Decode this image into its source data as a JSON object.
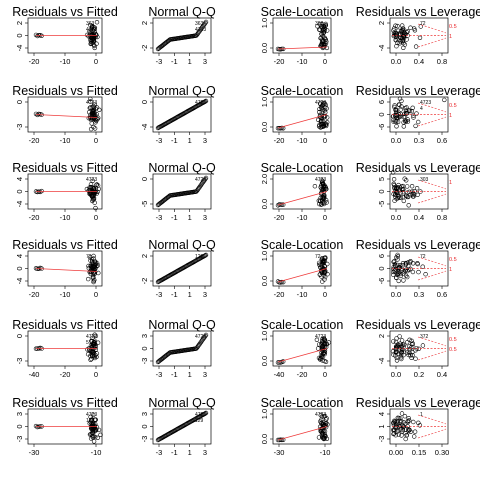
{
  "colors": {
    "smooth": "#ee3b3b",
    "cook": "#e8262a",
    "point": "#000000",
    "frame": "#000000"
  },
  "chart_data": [
    {
      "row": 0,
      "col": 0,
      "type": "scatter",
      "title": "Residuals vs Fitted",
      "xticks": [
        "-20",
        "-10",
        "0"
      ],
      "yticks": [
        "-4",
        "0",
        "2"
      ],
      "labels": [
        "363",
        "4723"
      ],
      "red_labels": []
    },
    {
      "row": 0,
      "col": 1,
      "type": "scatter",
      "title": "Normal Q-Q",
      "xticks": [
        "-3",
        "-1",
        "1",
        "3"
      ],
      "yticks": [
        "-2",
        "2"
      ],
      "labels": [
        "363",
        "4723"
      ],
      "red_labels": []
    },
    {
      "row": 0,
      "col": 2,
      "type": "scatter",
      "title": "Scale-Location",
      "xticks": [
        "-20",
        "-10",
        "0"
      ],
      "yticks": [
        "0.0",
        "1.0"
      ],
      "labels": [
        "363"
      ],
      "red_labels": []
    },
    {
      "row": 0,
      "col": 3,
      "type": "scatter",
      "title": "Residuals vs Leverage",
      "xticks": [
        "0.0",
        "0.4",
        "0.8"
      ],
      "yticks": [
        "-4",
        "2"
      ],
      "labels": [
        "72"
      ],
      "red_labels": [
        "0.5",
        "1"
      ]
    },
    {
      "row": 1,
      "col": 0,
      "type": "scatter",
      "title": "Residuals vs Fitted",
      "xticks": [
        "-20",
        "-10",
        "0"
      ],
      "yticks": [
        "-3",
        "0"
      ],
      "labels": [
        "4723"
      ],
      "red_labels": []
    },
    {
      "row": 1,
      "col": 1,
      "type": "scatter",
      "title": "Normal Q-Q",
      "xticks": [
        "-3",
        "-1",
        "1",
        "3"
      ],
      "yticks": [
        "-4",
        "0"
      ],
      "labels": [
        "4723"
      ],
      "red_labels": []
    },
    {
      "row": 1,
      "col": 2,
      "type": "scatter",
      "title": "Scale-Location",
      "xticks": [
        "-20",
        "-10",
        "0"
      ],
      "yticks": [
        "0.0",
        "1.0"
      ],
      "labels": [
        "4723"
      ],
      "red_labels": []
    },
    {
      "row": 1,
      "col": 3,
      "type": "scatter",
      "title": "Residuals vs Leverage",
      "xticks": [
        "0.0",
        "0.3",
        "0.6"
      ],
      "yticks": [
        "-6",
        "0",
        "6"
      ],
      "labels": [
        "4723",
        "4"
      ],
      "red_labels": [
        "0.5",
        "1"
      ]
    },
    {
      "row": 2,
      "col": 0,
      "type": "scatter",
      "title": "Residuals vs Fitted",
      "xticks": [
        "-20",
        "-10",
        "0"
      ],
      "yticks": [
        "-4",
        "0",
        "4"
      ],
      "labels": [
        "4723"
      ],
      "red_labels": []
    },
    {
      "row": 2,
      "col": 1,
      "type": "scatter",
      "title": "Normal Q-Q",
      "xticks": [
        "-3",
        "-1",
        "1",
        "3"
      ],
      "yticks": [
        "-5",
        "0"
      ],
      "labels": [
        "4723"
      ],
      "red_labels": []
    },
    {
      "row": 2,
      "col": 2,
      "type": "scatter",
      "title": "Scale-Location",
      "xticks": [
        "-20",
        "-10",
        "0"
      ],
      "yticks": [
        "0.0",
        "2.0"
      ],
      "labels": [
        "4723"
      ],
      "red_labels": []
    },
    {
      "row": 2,
      "col": 3,
      "type": "scatter",
      "title": "Residuals vs Leverage",
      "xticks": [
        "0.0",
        "0.4",
        "0.8"
      ],
      "yticks": [
        "-5",
        "0",
        "5"
      ],
      "labels": [
        "303"
      ],
      "red_labels": [
        "1"
      ]
    },
    {
      "row": 3,
      "col": 0,
      "type": "scatter",
      "title": "Residuals vs Fitted",
      "xticks": [
        "-20",
        "-10",
        "0"
      ],
      "yticks": [
        "-4",
        "0",
        "4"
      ],
      "labels": [
        "72"
      ],
      "red_labels": []
    },
    {
      "row": 3,
      "col": 1,
      "type": "scatter",
      "title": "Normal Q-Q",
      "xticks": [
        "-3",
        "-1",
        "1",
        "3"
      ],
      "yticks": [
        "-2",
        "2"
      ],
      "labels": [
        "129"
      ],
      "red_labels": []
    },
    {
      "row": 3,
      "col": 2,
      "type": "scatter",
      "title": "Scale-Location",
      "xticks": [
        "-20",
        "-10",
        "0"
      ],
      "yticks": [
        "0.0",
        "1.0"
      ],
      "labels": [
        "72"
      ],
      "red_labels": []
    },
    {
      "row": 3,
      "col": 3,
      "type": "scatter",
      "title": "Residuals vs Leverage",
      "xticks": [
        "0.0",
        "0.3",
        "0.6"
      ],
      "yticks": [
        "-6",
        "0",
        "6"
      ],
      "labels": [
        "72"
      ],
      "red_labels": [
        "0.5",
        "1"
      ]
    },
    {
      "row": 4,
      "col": 0,
      "type": "scatter",
      "title": "Residuals vs Fitted",
      "xticks": [
        "-40",
        "-20",
        "0"
      ],
      "yticks": [
        "-3",
        "0"
      ],
      "labels": [
        "4723",
        "51"
      ],
      "red_labels": []
    },
    {
      "row": 4,
      "col": 1,
      "type": "scatter",
      "title": "Normal Q-Q",
      "xticks": [
        "-3",
        "-1",
        "1",
        "3"
      ],
      "yticks": [
        "-3",
        "0",
        "3"
      ],
      "labels": [
        "4723"
      ],
      "red_labels": []
    },
    {
      "row": 4,
      "col": 2,
      "type": "scatter",
      "title": "Scale-Location",
      "xticks": [
        "-40",
        "-20",
        "0"
      ],
      "yticks": [
        "0.0",
        "1.0"
      ],
      "labels": [
        "4723"
      ],
      "red_labels": []
    },
    {
      "row": 4,
      "col": 3,
      "type": "scatter",
      "title": "Residuals vs Leverage",
      "xticks": [
        "0.0",
        "0.2",
        "0.4"
      ],
      "yticks": [
        "-4",
        "2"
      ],
      "labels": [
        "372"
      ],
      "red_labels": [
        "0.5",
        "0.5"
      ]
    },
    {
      "row": 5,
      "col": 0,
      "type": "scatter",
      "title": "Residuals vs Fitted",
      "xticks": [
        "-30",
        "-10"
      ],
      "yticks": [
        "-3",
        "0",
        "3"
      ],
      "labels": [
        "4723",
        "129"
      ],
      "red_labels": []
    },
    {
      "row": 5,
      "col": 1,
      "type": "scatter",
      "title": "Normal Q-Q",
      "xticks": [
        "-3",
        "-1",
        "1",
        "3"
      ],
      "yticks": [
        "-3",
        "0",
        "3"
      ],
      "labels": [
        "4723",
        "129"
      ],
      "red_labels": []
    },
    {
      "row": 5,
      "col": 2,
      "type": "scatter",
      "title": "Scale-Location",
      "xticks": [
        "-30",
        "-10"
      ],
      "yticks": [
        "0.0",
        "1.0"
      ],
      "labels": [
        "4723"
      ],
      "red_labels": []
    },
    {
      "row": 5,
      "col": 3,
      "type": "scatter",
      "title": "Residuals vs Leverage",
      "xticks": [
        "0.00",
        "0.15",
        "0.30"
      ],
      "yticks": [
        "-3",
        "1",
        "4"
      ],
      "labels": [
        "1"
      ],
      "red_labels": []
    }
  ]
}
